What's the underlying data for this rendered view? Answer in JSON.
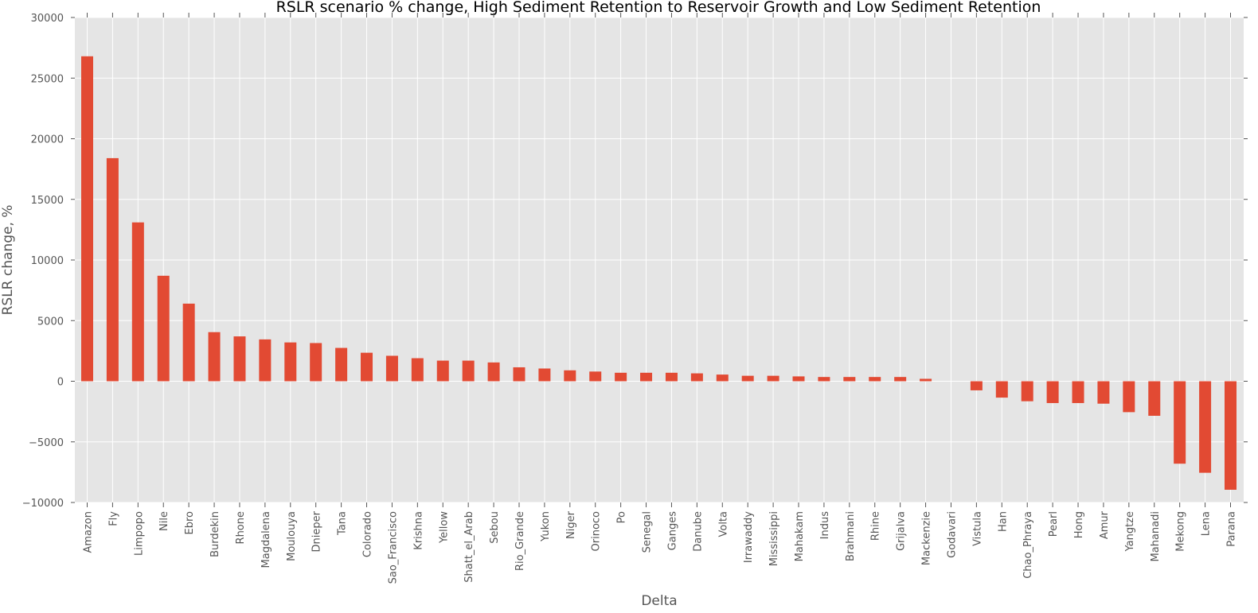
{
  "chart_data": {
    "type": "bar",
    "title": "RSLR scenario % change, High Sediment Retention to Reservoir Growth and Low Sediment Retention",
    "xlabel": "Delta",
    "ylabel": "RSLR change, %",
    "ylim": [
      -10000,
      30000
    ],
    "yticks": [
      "−10000",
      "−5000",
      "0",
      "5000",
      "10000",
      "15000",
      "20000",
      "25000",
      "30000"
    ],
    "ytick_values": [
      -10000,
      -5000,
      0,
      5000,
      10000,
      15000,
      20000,
      25000,
      30000
    ],
    "grid": true,
    "legend": "none",
    "colors": {
      "bar": "#E24A33",
      "plot_bg": "#E5E5E5",
      "grid": "#FFFFFF",
      "text": "#555555"
    },
    "categories": [
      "Amazon",
      "Fly",
      "Limpopo",
      "Nile",
      "Ebro",
      "Burdekin",
      "Rhone",
      "Magdalena",
      "Moulouya",
      "Dnieper",
      "Tana",
      "Colorado",
      "Sao_Francisco",
      "Krishna",
      "Yellow",
      "Shatt_el_Arab",
      "Sebou",
      "Rio_Grande",
      "Yukon",
      "Niger",
      "Orinoco",
      "Po",
      "Senegal",
      "Ganges",
      "Danube",
      "Volta",
      "Irrawaddy",
      "Mississippi",
      "Mahakam",
      "Indus",
      "Brahmani",
      "Rhine",
      "Grijalva",
      "Mackenzie",
      "Godavari",
      "Vistula",
      "Han",
      "Chao_Phraya",
      "Pearl",
      "Hong",
      "Amur",
      "Yangtze",
      "Mahanadi",
      "Mekong",
      "Lena",
      "Parana"
    ],
    "values": [
      26800,
      18400,
      13100,
      8700,
      6400,
      4050,
      3700,
      3450,
      3200,
      3150,
      2750,
      2350,
      2100,
      1900,
      1700,
      1700,
      1550,
      1150,
      1050,
      900,
      800,
      700,
      700,
      700,
      650,
      550,
      450,
      450,
      400,
      350,
      350,
      350,
      350,
      200,
      0,
      -750,
      -1350,
      -1650,
      -1800,
      -1800,
      -1850,
      -2550,
      -2850,
      -6800,
      -7550,
      -8950
    ]
  }
}
